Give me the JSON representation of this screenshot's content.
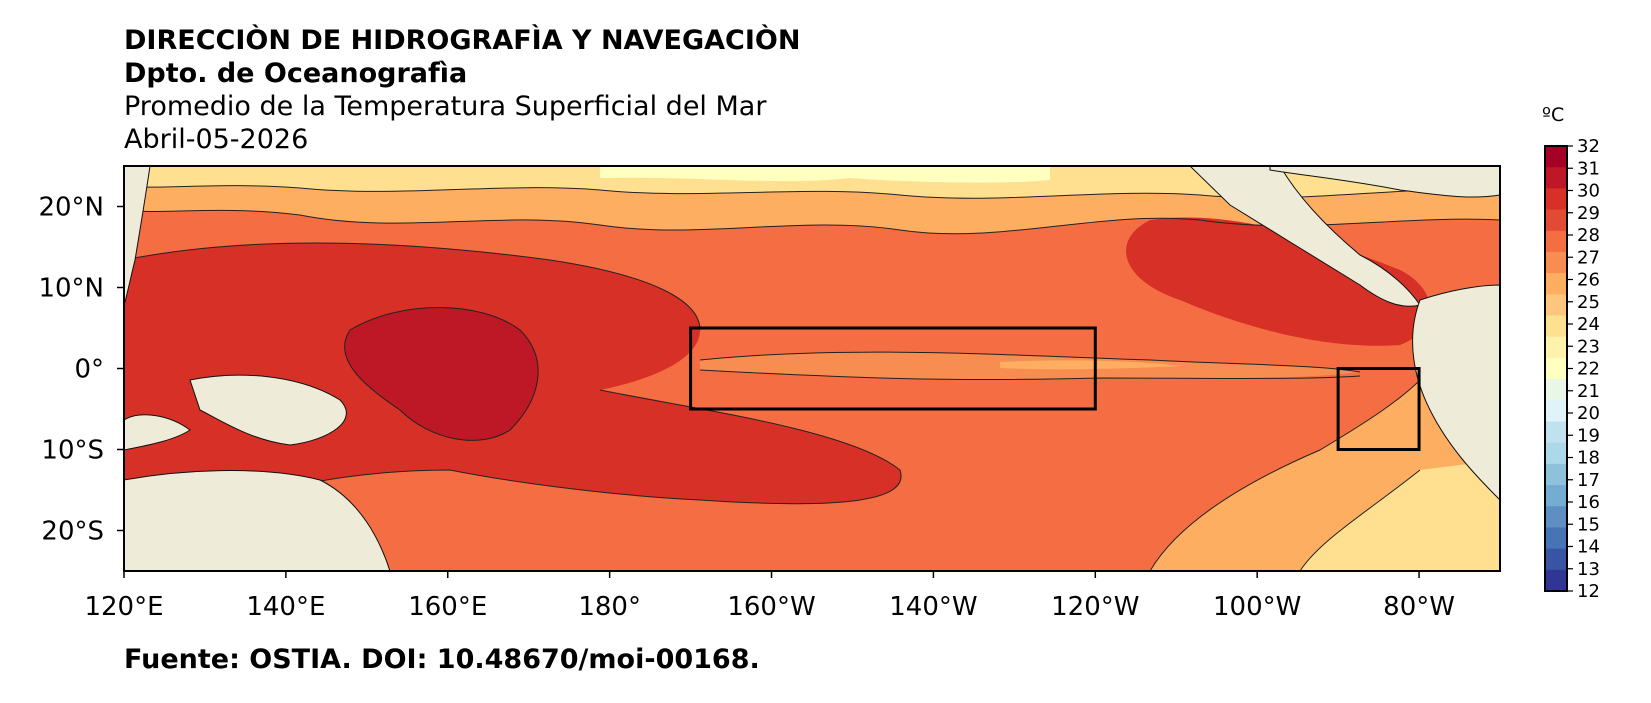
{
  "header": {
    "line1": "DIRECCIÒN DE HIDROGRAFÌA Y NAVEGACIÒN",
    "line2": "Dpto. de Oceanografìa",
    "line3": "Promedio de la Temperatura Superficial del Mar",
    "line4": "Abril-05-2026"
  },
  "map": {
    "lon_range": [
      120,
      290
    ],
    "lat_range": [
      -25,
      25
    ],
    "lat_ticks": [
      {
        "value": 20,
        "label": "20°N"
      },
      {
        "value": 10,
        "label": "10°N"
      },
      {
        "value": 0,
        "label": "0°"
      },
      {
        "value": -10,
        "label": "10°S"
      },
      {
        "value": -20,
        "label": "20°S"
      }
    ],
    "lon_ticks": [
      {
        "value": 120,
        "label": "120°E"
      },
      {
        "value": 140,
        "label": "140°E"
      },
      {
        "value": 160,
        "label": "160°E"
      },
      {
        "value": 180,
        "label": "180°"
      },
      {
        "value": 200,
        "label": "160°W"
      },
      {
        "value": 220,
        "label": "140°W"
      },
      {
        "value": 240,
        "label": "120°W"
      },
      {
        "value": 260,
        "label": "100°W"
      },
      {
        "value": 280,
        "label": "80°W"
      }
    ],
    "boxes": [
      {
        "name": "nino34-box",
        "lon": [
          190,
          240
        ],
        "lat": [
          -5,
          5
        ]
      },
      {
        "name": "nino12-box",
        "lon": [
          270,
          280
        ],
        "lat": [
          -10,
          0
        ]
      }
    ],
    "land_color": "#efebd9",
    "ocean_base_color": "#f46d43"
  },
  "colorbar": {
    "unit": "ºC",
    "ticks": [
      "32",
      "31",
      "30",
      "29",
      "28",
      "27",
      "26",
      "25",
      "24",
      "23",
      "22",
      "21",
      "20",
      "19",
      "18",
      "17",
      "16",
      "15",
      "14",
      "13",
      "12"
    ],
    "colors": [
      "#a50026",
      "#be1827",
      "#d73027",
      "#e34a33",
      "#f46d43",
      "#f88d52",
      "#fdae61",
      "#fec67c",
      "#fee090",
      "#fff3ac",
      "#ffffbf",
      "#e9f6e8",
      "#e0f3f8",
      "#c0e2ef",
      "#abd9e9",
      "#8ec1dc",
      "#74add1",
      "#5d8fc2",
      "#4575b4",
      "#3a54a4",
      "#313695"
    ]
  },
  "footer": {
    "source": "Fuente: OSTIA. DOI: 10.48670/moi-00168."
  }
}
